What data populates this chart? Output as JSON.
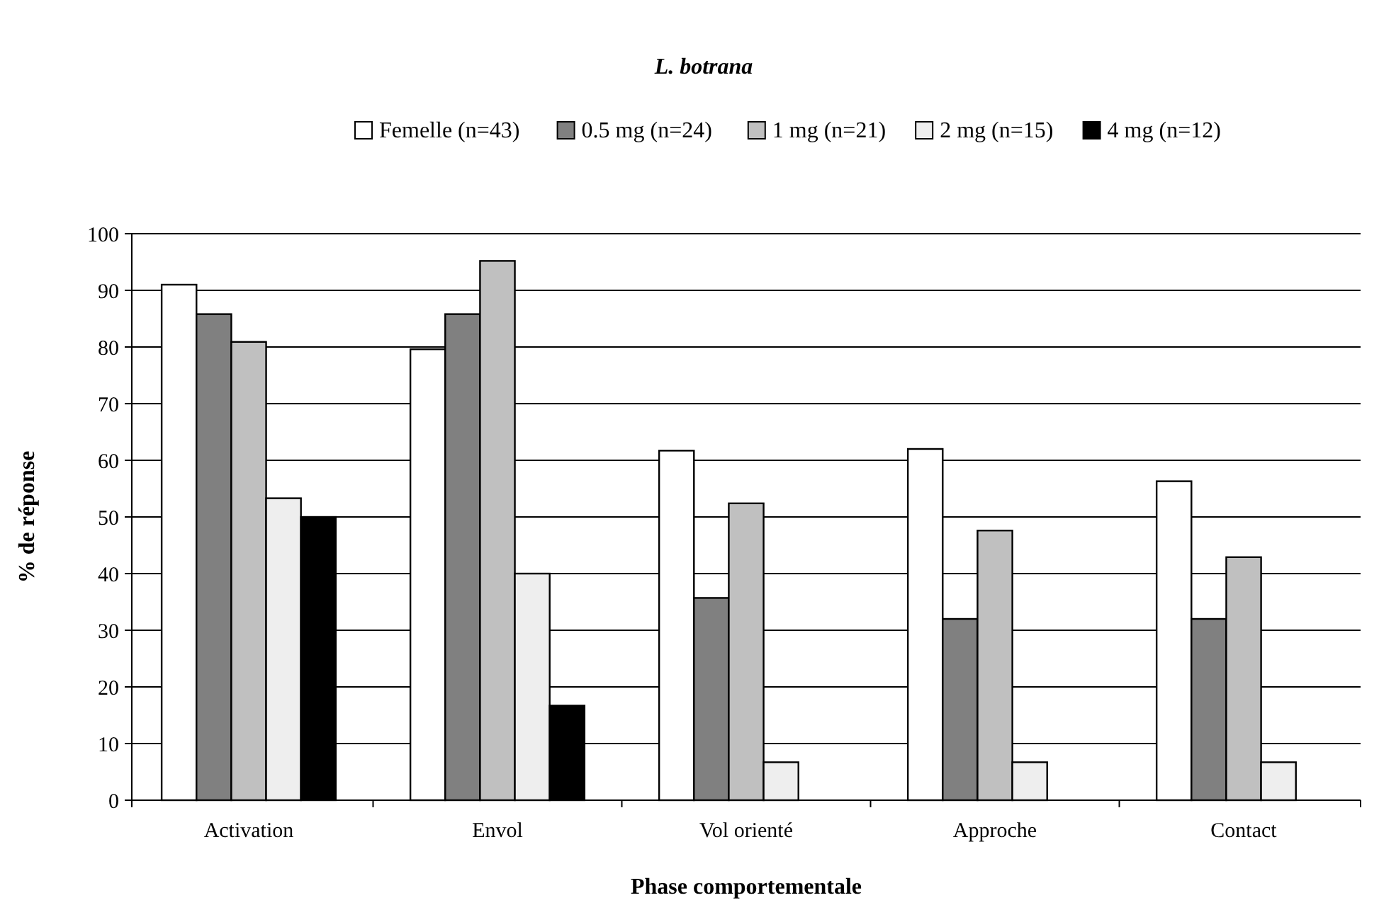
{
  "chart_data": {
    "type": "bar",
    "title": "L. botrana",
    "xlabel": "Phase comportementale",
    "ylabel": "% de réponse",
    "categories": [
      "Activation",
      "Envol",
      "Vol orienté",
      "Approche",
      "Contact"
    ],
    "series": [
      {
        "name": "Femelle (n=43)",
        "color": "#ffffff",
        "values": [
          91,
          79.6,
          61.7,
          62,
          56.3
        ]
      },
      {
        "name": "0.5 mg (n=24)",
        "color": "#808080",
        "values": [
          85.8,
          85.8,
          35.7,
          32,
          32
        ]
      },
      {
        "name": "1 mg (n=21)",
        "color": "#c0c0c0",
        "values": [
          80.9,
          95.2,
          52.4,
          47.6,
          42.9
        ]
      },
      {
        "name": "2 mg (n=15)",
        "color": "#eeeeee",
        "values": [
          53.3,
          40,
          6.7,
          6.7,
          6.7
        ]
      },
      {
        "name": "4 mg (n=12)",
        "color": "#000000",
        "values": [
          50,
          16.7,
          0,
          0,
          0
        ]
      }
    ],
    "ylim": [
      0,
      100
    ],
    "yticks": [
      0,
      10,
      20,
      30,
      40,
      50,
      60,
      70,
      80,
      90,
      100
    ],
    "grid": "y",
    "legend": "top"
  }
}
